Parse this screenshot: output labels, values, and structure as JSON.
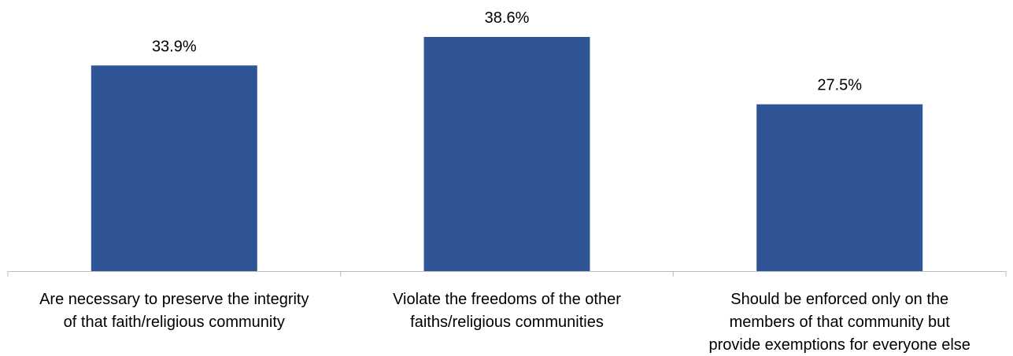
{
  "chart_data": {
    "type": "bar",
    "categories": [
      [
        "Are necessary to preserve the integrity",
        "of that faith/religious community"
      ],
      [
        "Violate the freedoms of the other",
        "faiths/religious communities"
      ],
      [
        "Should be enforced only on the",
        "members of that community but",
        "provide exemptions for everyone else"
      ]
    ],
    "values": [
      33.9,
      38.6,
      27.5
    ],
    "value_labels": [
      "33.9%",
      "38.6%",
      "27.5%"
    ],
    "title": "",
    "xlabel": "",
    "ylabel": "",
    "ylim": [
      0,
      45
    ],
    "grid": false,
    "legend": "none",
    "bar_color": "#2F5597",
    "axis_color": "#BFBFBF"
  }
}
